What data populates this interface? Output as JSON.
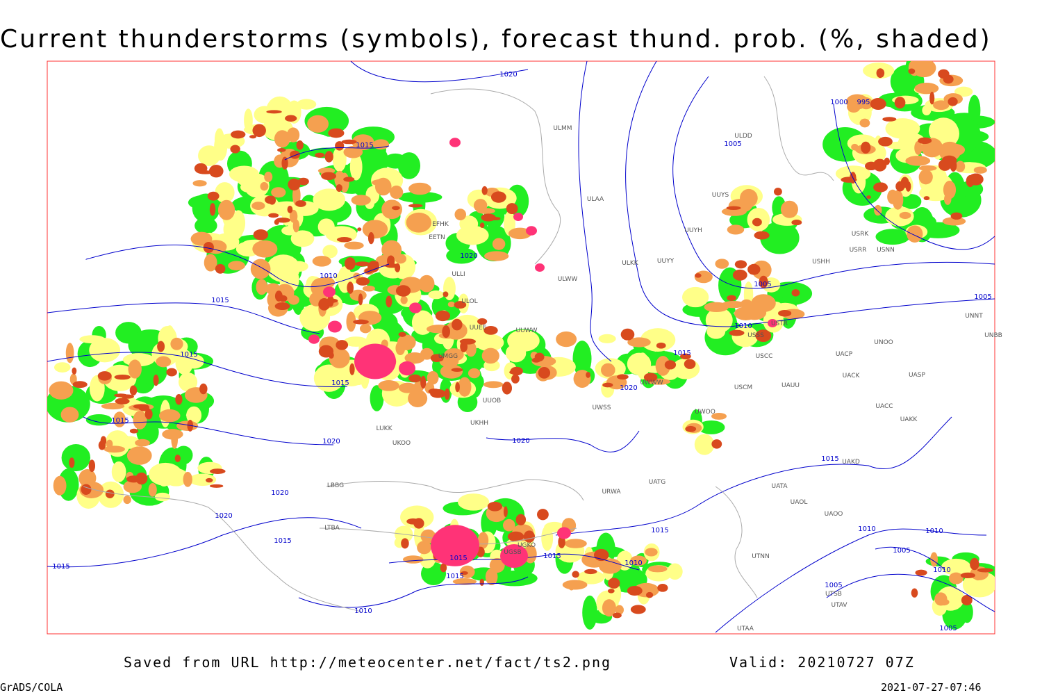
{
  "title": "Current thunderstorms (symbols), forecast thund. prob. (%, shaded)",
  "footer": {
    "source": "Saved from URL http://meteocenter.net/fact/ts2.png",
    "valid": "Valid: 20210727 07Z"
  },
  "software": "GrADS/COLA",
  "timestamp": "2021-07-27-07:46",
  "stations": [
    "ULMM",
    "ULDD",
    "ULAA",
    "UUYS",
    "UUYH",
    "ULKK",
    "UUYY",
    "ULWW",
    "USHH",
    "USRR",
    "USNN",
    "USRK",
    "USTR",
    "USSS",
    "UNOO",
    "USCC",
    "UACP",
    "UACK",
    "UASP",
    "USCM",
    "UAUU",
    "UWWW",
    "UWSS",
    "UWOO",
    "UACC",
    "UAKK",
    "UAKD",
    "UATG",
    "UATA",
    "UAOL",
    "UAOO",
    "URWA",
    "UTNN",
    "UTAA",
    "UTAV",
    "UTSB",
    "UNNT",
    "UNBB",
    "ULOL",
    "UUEE",
    "UUWW",
    "UMGG",
    "UUOB",
    "UKHH",
    "UKOO",
    "LUKK",
    "LBBG",
    "LTBA",
    "UGSB",
    "UGKO",
    "ULLI",
    "EFHK",
    "EETN"
  ],
  "isobar_labels": [
    1020,
    1015,
    1005,
    1000,
    995,
    1020,
    1010,
    1015,
    1005,
    1005,
    1010,
    1015,
    1015,
    1015,
    1020,
    1015,
    1020,
    1020,
    1015,
    1020,
    1020,
    1015,
    1015,
    1010,
    1005,
    1010,
    1015,
    1015,
    1010,
    1015,
    1015,
    1010,
    1005,
    1010,
    1005
  ]
}
